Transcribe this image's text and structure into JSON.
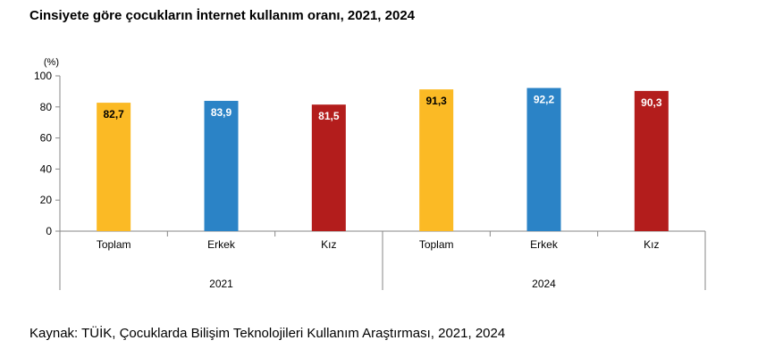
{
  "title": "Cinsiyete göre çocukların İnternet kullanım oranı, 2021, 2024",
  "source": "Kaynak: TÜİK, Çocuklarda Bilişim Teknolojileri Kullanım Araştırması, 2021, 2024",
  "chart_data": {
    "type": "bar",
    "ylabel": "(%)",
    "ylim": [
      0,
      100
    ],
    "yticks": [
      0,
      20,
      40,
      60,
      80,
      100
    ],
    "groups": [
      {
        "label": "2021",
        "categories": [
          "Toplam",
          "Erkek",
          "Kız"
        ],
        "values": [
          82.7,
          83.9,
          81.5
        ],
        "value_labels": [
          "82,7",
          "83,9",
          "81,5"
        ]
      },
      {
        "label": "2024",
        "categories": [
          "Toplam",
          "Erkek",
          "Kız"
        ],
        "values": [
          91.3,
          92.2,
          90.3
        ],
        "value_labels": [
          "91,3",
          "92,2",
          "90,3"
        ]
      }
    ],
    "colors": {
      "Toplam": "#FBBA25",
      "Erkek": "#2B83C6",
      "Kız": "#B31D1C"
    },
    "label_colors": {
      "Toplam": "#000000",
      "Erkek": "#ffffff",
      "Kız": "#ffffff"
    },
    "grid": false,
    "legend": "none"
  }
}
